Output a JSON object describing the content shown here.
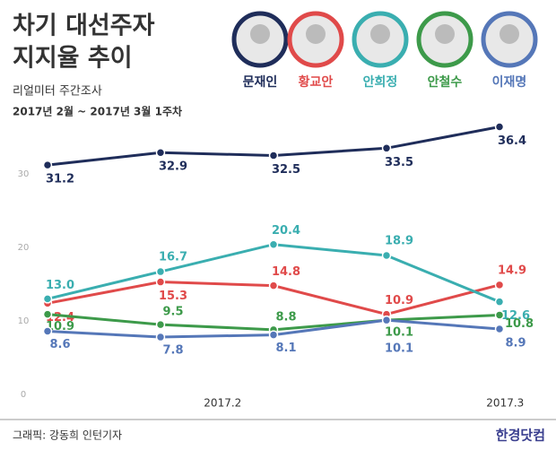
{
  "chart_data": {
    "type": "line",
    "title": "차기 대선주자",
    "title2": "지지율 추이",
    "subtitle": "리얼미터 주간조사",
    "period": "2017년 2월 ~ 2017년 3월 1주차",
    "categories": [
      null,
      null,
      null,
      null,
      null
    ],
    "xticks": [
      {
        "value": 1.55,
        "label": "2017.2"
      },
      {
        "value": 4.05,
        "label": "2017.3"
      }
    ],
    "ylim": [
      0,
      40
    ],
    "yticks": [
      0,
      10,
      20,
      30
    ],
    "series": [
      {
        "name": "문재인",
        "color": "#1f2d5a",
        "values": [
          31.2,
          32.9,
          32.5,
          33.5,
          36.4
        ],
        "value_labels": [
          "31.2",
          "32.9",
          "32.5",
          "33.5",
          "36.4"
        ]
      },
      {
        "name": "황교안",
        "color": "#e04a4a",
        "values": [
          12.4,
          15.3,
          14.8,
          10.9,
          14.9
        ],
        "value_labels": [
          "12.4",
          "15.3",
          "14.8",
          "10.9",
          "14.9"
        ]
      },
      {
        "name": "안희정",
        "color": "#3aaeb0",
        "values": [
          13.0,
          16.7,
          20.4,
          18.9,
          12.6
        ],
        "value_labels": [
          "13.0",
          "16.7",
          "20.4",
          "18.9",
          "12.6"
        ]
      },
      {
        "name": "안철수",
        "color": "#3d9a4a",
        "values": [
          10.9,
          9.5,
          8.8,
          10.1,
          10.8
        ],
        "value_labels": [
          "10.9",
          "9.5",
          "8.8",
          "10.1",
          "10.8"
        ]
      },
      {
        "name": "이재명",
        "color": "#5577b8",
        "values": [
          8.6,
          7.8,
          8.1,
          10.1,
          8.9
        ],
        "value_labels": [
          "8.6",
          "7.8",
          "8.1",
          "10.1",
          "8.9"
        ]
      }
    ],
    "credit": "그래픽: 강동희 인턴기자",
    "brand": "한경닷컴"
  }
}
